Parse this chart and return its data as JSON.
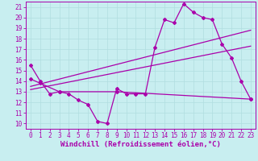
{
  "xlabel": "Windchill (Refroidissement éolien,°C)",
  "xlim": [
    -0.5,
    23.5
  ],
  "ylim": [
    9.5,
    21.5
  ],
  "yticks": [
    10,
    11,
    12,
    13,
    14,
    15,
    16,
    17,
    18,
    19,
    20,
    21
  ],
  "xticks": [
    0,
    1,
    2,
    3,
    4,
    5,
    6,
    7,
    8,
    9,
    10,
    11,
    12,
    13,
    14,
    15,
    16,
    17,
    18,
    19,
    20,
    21,
    22,
    23
  ],
  "background_color": "#c8eef0",
  "line_color": "#aa00aa",
  "grid_color": "#b0dde0",
  "line1_x": [
    0,
    1,
    2,
    3,
    4,
    5,
    6,
    7,
    8,
    9,
    10,
    11,
    12,
    13,
    14,
    15,
    16,
    17,
    18,
    19,
    20,
    21,
    22,
    23
  ],
  "line1_y": [
    15.5,
    14.0,
    12.8,
    13.0,
    12.8,
    12.2,
    11.8,
    10.2,
    10.0,
    13.3,
    12.8,
    12.8,
    12.8,
    17.2,
    19.8,
    19.5,
    21.3,
    20.5,
    20.0,
    19.8,
    17.5,
    16.2,
    14.0,
    12.3
  ],
  "line2_x": [
    0,
    1,
    3,
    9,
    23
  ],
  "line2_y": [
    14.2,
    13.8,
    13.0,
    13.0,
    12.3
  ],
  "line3_x": [
    0,
    23
  ],
  "line3_y": [
    13.5,
    18.8
  ],
  "line4_x": [
    0,
    23
  ],
  "line4_y": [
    13.2,
    17.3
  ],
  "font_size_label": 6.5,
  "font_size_tick": 5.5,
  "marker": "D",
  "marker_size": 2.0,
  "linewidth": 0.9
}
